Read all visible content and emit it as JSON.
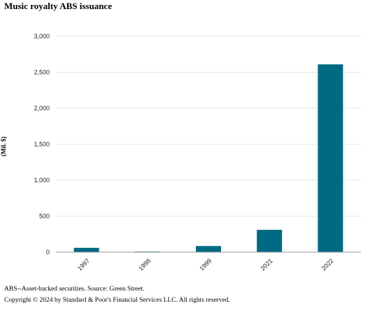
{
  "chart_data": {
    "type": "bar",
    "title": "Music royalty ABS issuance",
    "ylabel": "(Mil. $)",
    "xlabel": "",
    "categories": [
      "1997",
      "1998",
      "1999",
      "2021",
      "2022"
    ],
    "values": [
      60,
      8,
      85,
      310,
      2610
    ],
    "ylim": [
      0,
      3000
    ],
    "yticks": [
      "0",
      "500",
      "1,000",
      "1,500",
      "2,000",
      "2,500",
      "3,000"
    ],
    "ytick_values": [
      0,
      500,
      1000,
      1500,
      2000,
      2500,
      3000
    ],
    "grid": true,
    "bar_color": "#006a82",
    "grid_color": "#e6e6e6"
  },
  "footnotes": {
    "source": "ABS--Asset-backed securities. Source: Green Street.",
    "copyright": "Copyright © 2024 by Standard & Poor's Financial Services LLC. All rights reserved."
  }
}
